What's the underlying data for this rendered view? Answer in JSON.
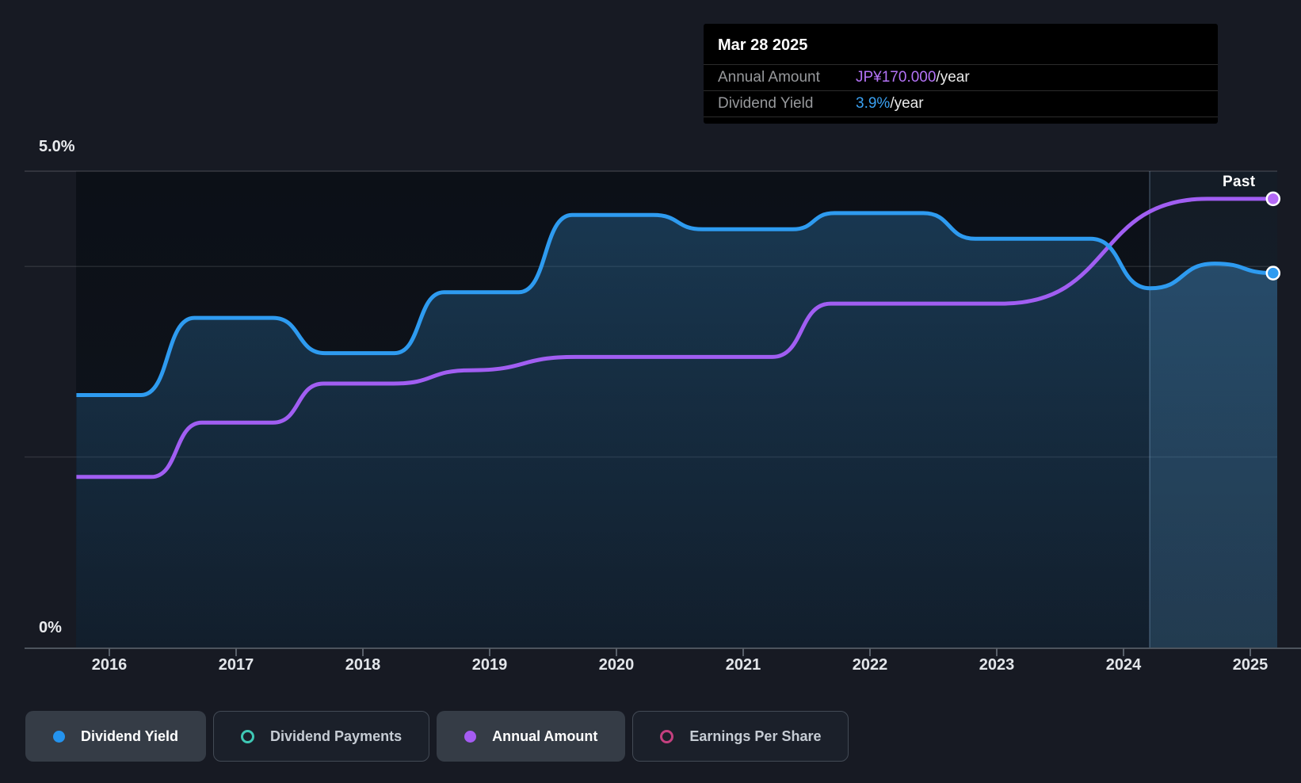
{
  "annotations": {
    "past_label": "Past"
  },
  "tooltip": {
    "date": "Mar 28 2025",
    "rows": [
      {
        "label": "Annual Amount",
        "value": "JP¥170.000",
        "suffix": "/year",
        "value_color": "#b473f7"
      },
      {
        "label": "Dividend Yield",
        "value": "3.9%",
        "suffix": "/year",
        "value_color": "#3aa1f2"
      }
    ]
  },
  "legend": [
    {
      "label": "Dividend Yield",
      "marker": "filled",
      "color": "#2493ee",
      "active": true
    },
    {
      "label": "Dividend Payments",
      "marker": "hollow",
      "color": "#3fc8b5",
      "active": false
    },
    {
      "label": "Annual Amount",
      "marker": "filled",
      "color": "#a55cf2",
      "active": true
    },
    {
      "label": "Earnings Per Share",
      "marker": "hollow",
      "color": "#c4407f",
      "active": false
    }
  ],
  "chart_data": {
    "type": "area",
    "title": "Dividend yield and annual amount history",
    "x_ticks": [
      "2016",
      "2017",
      "2018",
      "2019",
      "2020",
      "2021",
      "2022",
      "2023",
      "2024",
      "2025"
    ],
    "x_range": [
      2015.74,
      2025.4
    ],
    "y_axis": {
      "min": 0,
      "max": 5,
      "unit": "%",
      "top_label": "5.0%",
      "bottom_label": "0%",
      "gridlines_pct": [
        5,
        4,
        2
      ]
    },
    "past_divider_year": 2024.21,
    "legend_position": "bottom",
    "series": [
      {
        "name": "Dividend Yield",
        "color": "#2e9bf0",
        "fill": true,
        "end_marker": true,
        "unit": "%",
        "points": [
          [
            2015.74,
            2.65
          ],
          [
            2016.25,
            2.65
          ],
          [
            2016.67,
            3.46
          ],
          [
            2017.29,
            3.46
          ],
          [
            2017.7,
            3.09
          ],
          [
            2018.25,
            3.09
          ],
          [
            2018.64,
            3.73
          ],
          [
            2019.23,
            3.73
          ],
          [
            2019.65,
            4.54
          ],
          [
            2020.29,
            4.54
          ],
          [
            2020.68,
            4.39
          ],
          [
            2021.39,
            4.39
          ],
          [
            2021.72,
            4.56
          ],
          [
            2022.42,
            4.56
          ],
          [
            2022.83,
            4.29
          ],
          [
            2023.74,
            4.29
          ],
          [
            2024.21,
            3.77
          ],
          [
            2024.72,
            4.03
          ],
          [
            2025.18,
            3.93
          ]
        ],
        "final_value": "3.9%/year"
      },
      {
        "name": "Annual Amount",
        "color": "#a15ef2",
        "fill": false,
        "end_marker": true,
        "unit": "JP¥/year (plotted on yield scale)",
        "points": [
          [
            2015.74,
            1.79
          ],
          [
            2016.33,
            1.79
          ],
          [
            2016.73,
            2.36
          ],
          [
            2017.29,
            2.36
          ],
          [
            2017.69,
            2.77
          ],
          [
            2018.24,
            2.77
          ],
          [
            2018.85,
            2.91
          ],
          [
            2019.68,
            3.05
          ],
          [
            2021.23,
            3.05
          ],
          [
            2021.69,
            3.61
          ],
          [
            2023.04,
            3.61
          ],
          [
            2024.66,
            4.71
          ],
          [
            2025.18,
            4.71
          ]
        ],
        "amounts_jpy_estimated": [
          65,
          65,
          85,
          85,
          100,
          100,
          105,
          110,
          110,
          130,
          130,
          170,
          170
        ],
        "final_value": "JP¥170.000/year"
      }
    ]
  }
}
